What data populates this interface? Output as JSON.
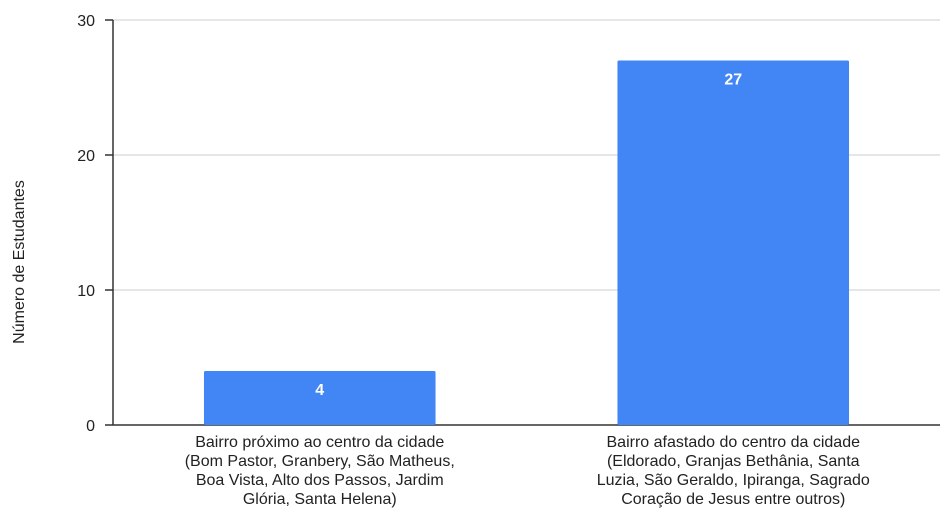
{
  "chart_data": {
    "type": "bar",
    "title": "",
    "xlabel": "",
    "ylabel": "Número de Estudantes",
    "ylim": [
      0,
      30
    ],
    "yticks": [
      0,
      10,
      20,
      30
    ],
    "grid": true,
    "legend": "none",
    "bar_color": "#4285F4",
    "categories": [
      "Bairro próximo ao centro da cidade (Bom Pastor, Granbery, São Matheus, Boa Vista, Alto dos Passos, Jardim Glória, Santa Helena)",
      "Bairro afastado do centro da cidade (Eldorado, Granjas Bethânia, Santa Luzia, São Geraldo, Ipiranga, Sagrado Coração de Jesus entre outros)"
    ],
    "category_label_lines": [
      [
        "Bairro próximo ao centro da cidade",
        "(Bom Pastor, Granbery, São Matheus,",
        "Boa Vista, Alto dos Passos, Jardim",
        "Glória, Santa Helena)"
      ],
      [
        "Bairro afastado do centro da cidade",
        "(Eldorado, Granjas Bethânia, Santa",
        "Luzia, São Geraldo, Ipiranga, Sagrado",
        "Coração de Jesus entre outros)"
      ]
    ],
    "values": [
      4,
      27
    ],
    "data_labels": [
      "4",
      "27"
    ]
  }
}
